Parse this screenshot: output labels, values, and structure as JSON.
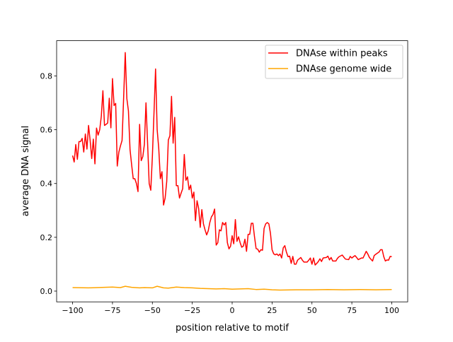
{
  "chart_data": {
    "type": "line",
    "title": "",
    "xlabel": "position relative to motif",
    "ylabel": "average DNA signal",
    "xlim": [
      -110,
      110
    ],
    "ylim": [
      -0.04,
      0.931
    ],
    "xticks": [
      -100,
      -75,
      -50,
      -25,
      0,
      25,
      50,
      75,
      100
    ],
    "xtick_labels": [
      "−100",
      "−75",
      "−50",
      "−25",
      "0",
      "25",
      "50",
      "75",
      "100"
    ],
    "yticks": [
      0.0,
      0.2,
      0.4,
      0.6,
      0.8
    ],
    "ytick_labels": [
      "0.0",
      "0.2",
      "0.4",
      "0.6",
      "0.8"
    ],
    "grid": false,
    "legend_position": "top-right",
    "series": [
      {
        "name": "DNAse within peaks",
        "color": "#ff0000",
        "x_start": -100,
        "x_step": 1,
        "y": [
          0.504,
          0.48,
          0.545,
          0.49,
          0.556,
          0.556,
          0.568,
          0.517,
          0.584,
          0.528,
          0.616,
          0.56,
          0.493,
          0.565,
          0.473,
          0.606,
          0.58,
          0.6,
          0.65,
          0.745,
          0.616,
          0.62,
          0.625,
          0.717,
          0.607,
          0.79,
          0.69,
          0.698,
          0.465,
          0.517,
          0.54,
          0.56,
          0.72,
          0.887,
          0.716,
          0.67,
          0.526,
          0.47,
          0.418,
          0.418,
          0.4,
          0.37,
          0.62,
          0.485,
          0.5,
          0.546,
          0.7,
          0.55,
          0.4,
          0.375,
          0.5,
          0.66,
          0.826,
          0.6,
          0.53,
          0.418,
          0.444,
          0.32,
          0.346,
          0.408,
          0.562,
          0.578,
          0.724,
          0.55,
          0.646,
          0.392,
          0.392,
          0.346,
          0.364,
          0.381,
          0.508,
          0.412,
          0.425,
          0.377,
          0.394,
          0.346,
          0.368,
          0.262,
          0.336,
          0.307,
          0.237,
          0.303,
          0.25,
          0.228,
          0.209,
          0.224,
          0.255,
          0.276,
          0.285,
          0.305,
          0.171,
          0.18,
          0.228,
          0.224,
          0.255,
          0.246,
          0.255,
          0.18,
          0.157,
          0.167,
          0.206,
          0.176,
          0.266,
          0.185,
          0.202,
          0.18,
          0.163,
          0.167,
          0.193,
          0.148,
          0.211,
          0.211,
          0.252,
          0.252,
          0.202,
          0.158,
          0.156,
          0.145,
          0.154,
          0.152,
          0.233,
          0.25,
          0.255,
          0.25,
          0.215,
          0.154,
          0.139,
          0.135,
          0.138,
          0.132,
          0.138,
          0.123,
          0.161,
          0.169,
          0.145,
          0.128,
          0.13,
          0.103,
          0.129,
          0.1,
          0.1,
          0.115,
          0.12,
          0.125,
          0.115,
          0.108,
          0.108,
          0.108,
          0.115,
          0.123,
          0.1,
          0.123,
          0.097,
          0.103,
          0.11,
          0.12,
          0.11,
          0.123,
          0.124,
          0.125,
          0.13,
          0.116,
          0.125,
          0.112,
          0.112,
          0.112,
          0.122,
          0.128,
          0.131,
          0.134,
          0.126,
          0.119,
          0.118,
          0.117,
          0.129,
          0.123,
          0.128,
          0.132,
          0.125,
          0.117,
          0.12,
          0.123,
          0.123,
          0.135,
          0.148,
          0.138,
          0.125,
          0.118,
          0.112,
          0.132,
          0.137,
          0.141,
          0.145,
          0.154,
          0.154,
          0.128,
          0.112,
          0.116,
          0.115,
          0.129,
          0.128
        ]
      },
      {
        "name": "DNAse genome wide",
        "color": "#ffa500",
        "x": [
          -100,
          -90,
          -80,
          -75,
          -70,
          -67,
          -63,
          -58,
          -55,
          -50,
          -47,
          -43,
          -40,
          -35,
          -30,
          -25,
          -20,
          -15,
          -10,
          -5,
          0,
          5,
          10,
          15,
          20,
          25,
          30,
          40,
          50,
          60,
          70,
          80,
          90,
          100
        ],
        "y": [
          0.013,
          0.012,
          0.014,
          0.015,
          0.013,
          0.018,
          0.014,
          0.012,
          0.013,
          0.012,
          0.018,
          0.012,
          0.011,
          0.015,
          0.013,
          0.012,
          0.01,
          0.009,
          0.008,
          0.009,
          0.007,
          0.008,
          0.009,
          0.006,
          0.007,
          0.005,
          0.004,
          0.005,
          0.005,
          0.006,
          0.005,
          0.006,
          0.005,
          0.006
        ]
      }
    ]
  }
}
